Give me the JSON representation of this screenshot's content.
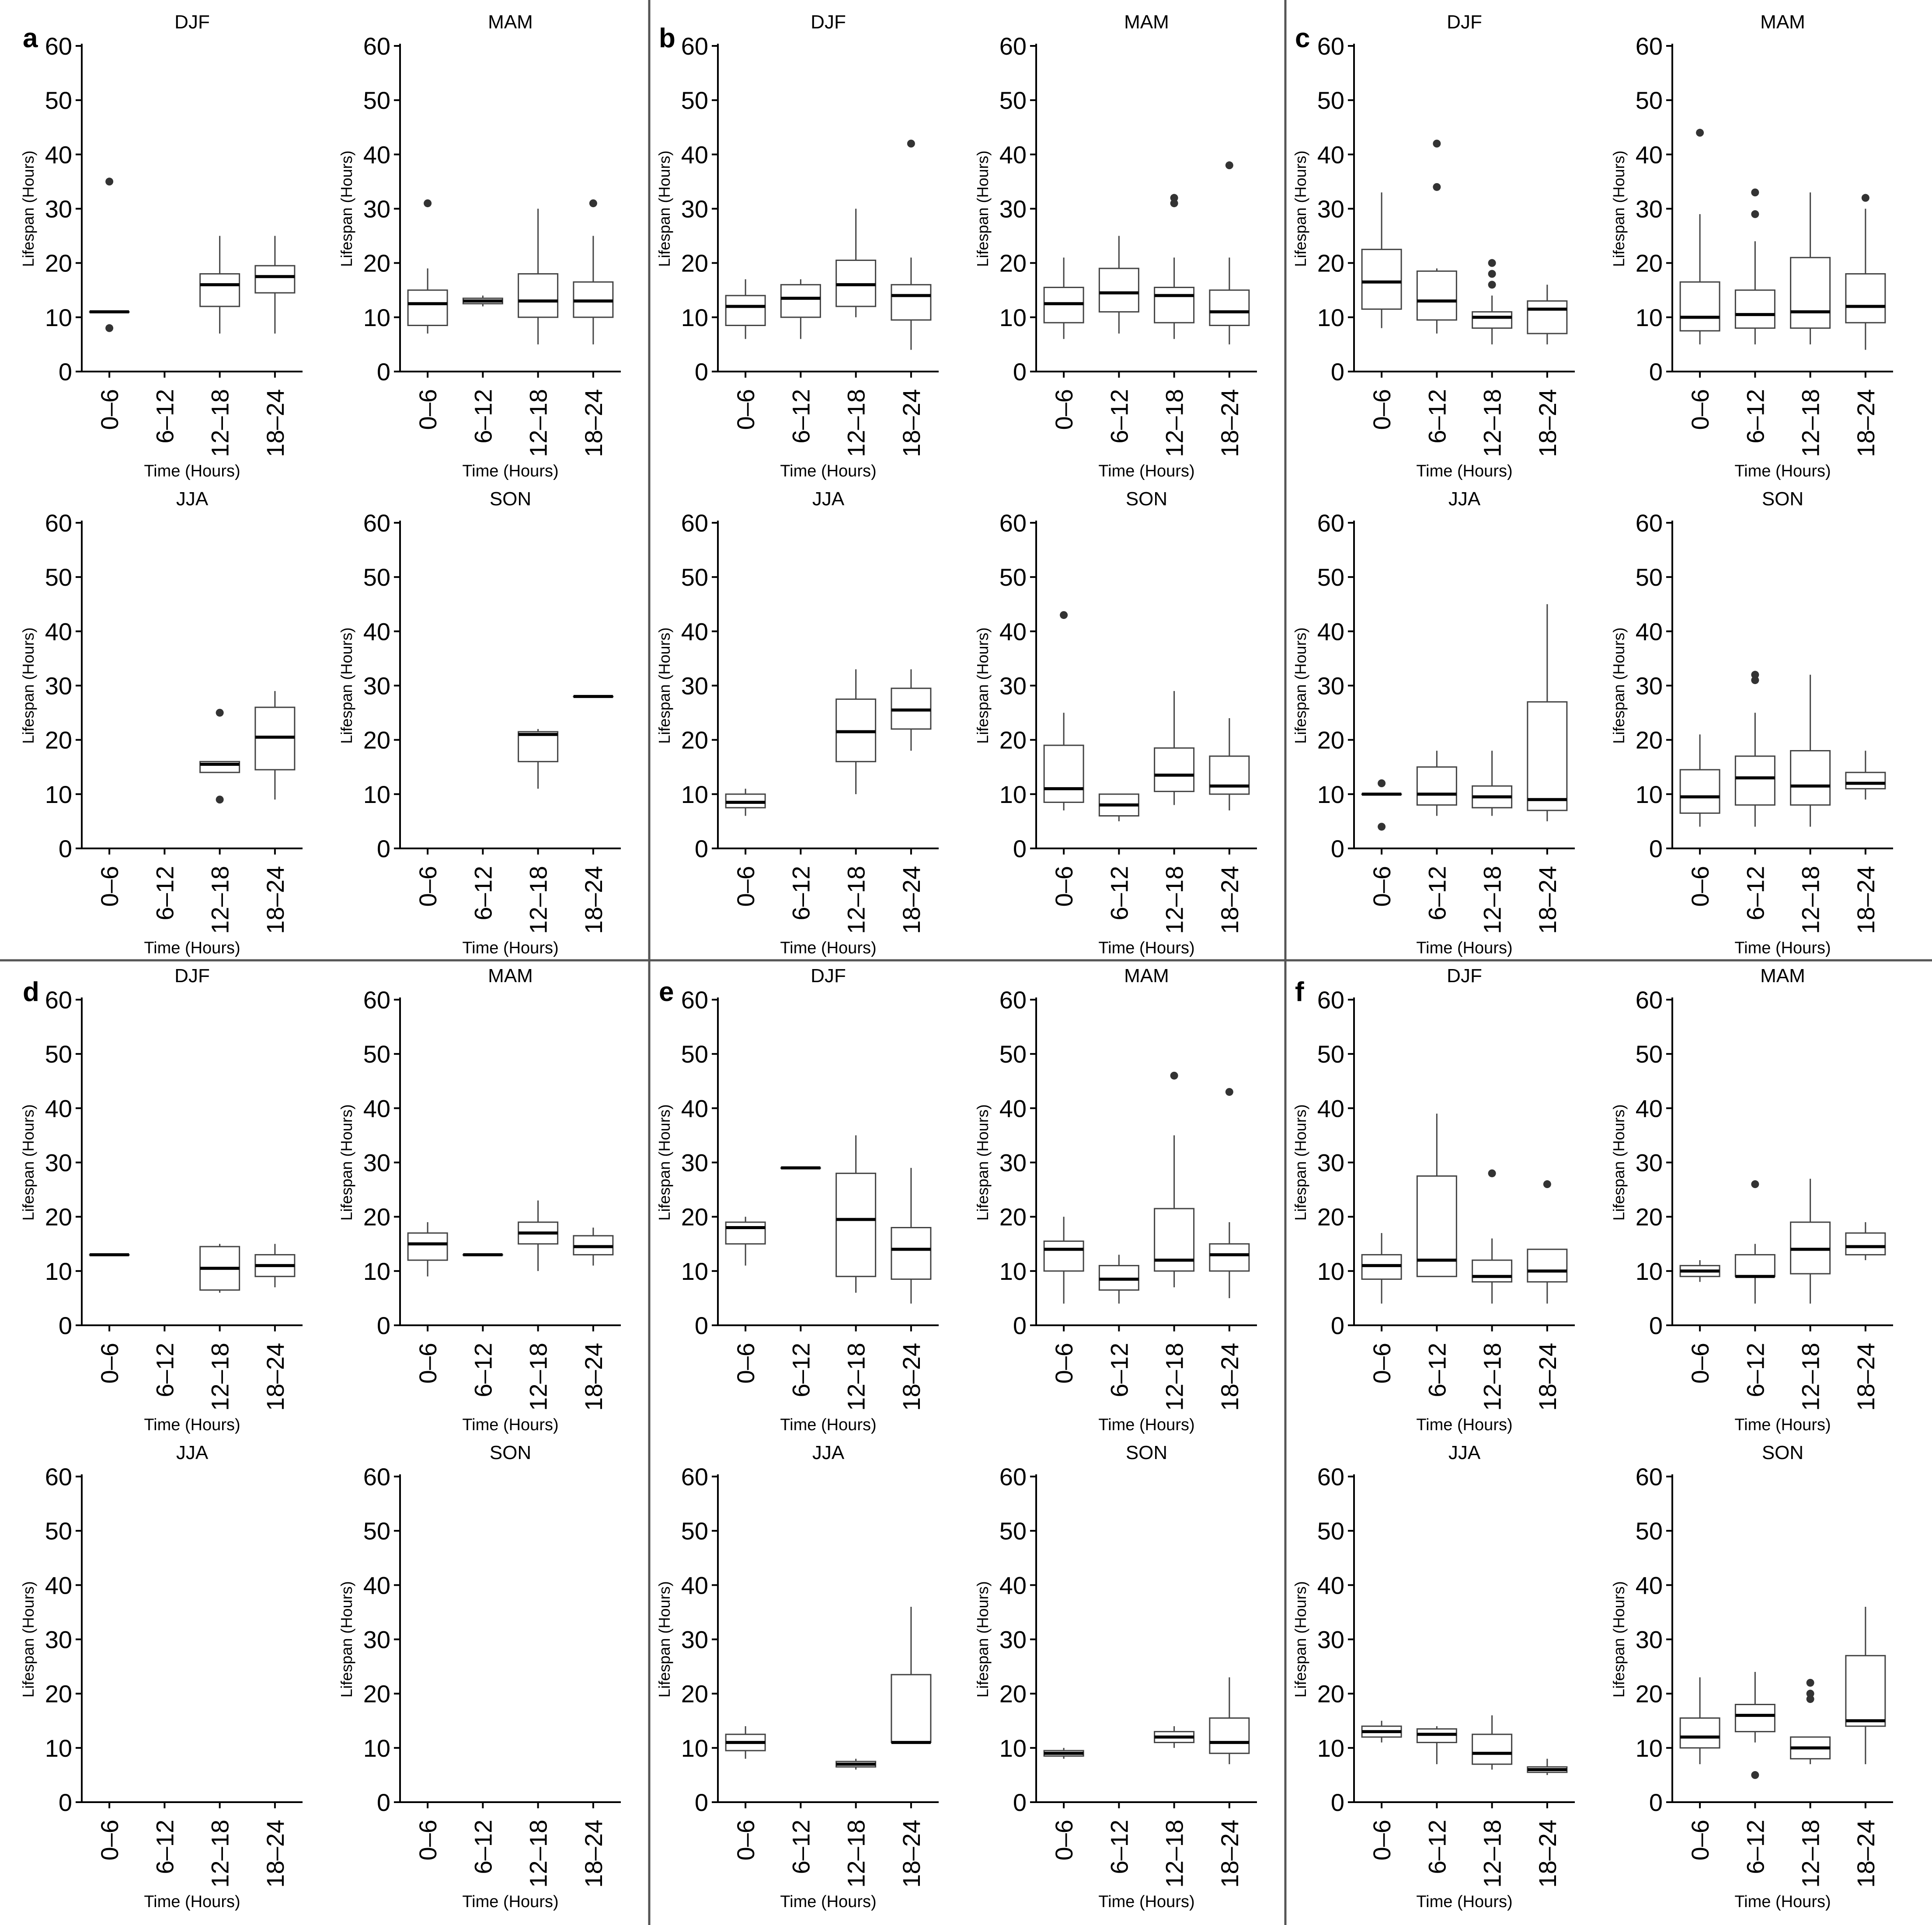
{
  "figure": {
    "colors": {
      "axis": "#000000",
      "box": "#444444",
      "outlier": "#333333",
      "divider": "#555555"
    },
    "shared": {
      "xlabel": "Time (Hours)",
      "ylabel": "Lifespan (Hours)",
      "categories": [
        "0–6",
        "6–12",
        "12–18",
        "18–24"
      ],
      "yticks": [
        0,
        10,
        20,
        30,
        40,
        50,
        60
      ],
      "ylim": [
        0,
        60
      ]
    }
  },
  "chart_data": [
    {
      "label": "a",
      "type": "boxplot",
      "panels": [
        {
          "title": "DJF",
          "boxes": [
            {
              "q1": 11,
              "median": 11,
              "q3": 11,
              "lo": 11,
              "hi": 11,
              "outliers": [
                35,
                8
              ]
            },
            null,
            {
              "q1": 12,
              "median": 16,
              "q3": 18,
              "lo": 7,
              "hi": 25,
              "outliers": []
            },
            {
              "q1": 14.5,
              "median": 17.5,
              "q3": 19.5,
              "lo": 7,
              "hi": 25,
              "outliers": []
            }
          ]
        },
        {
          "title": "MAM",
          "boxes": [
            {
              "q1": 8.5,
              "median": 12.5,
              "q3": 15,
              "lo": 7,
              "hi": 19,
              "outliers": [
                31
              ]
            },
            {
              "q1": 12.5,
              "median": 13,
              "q3": 13.5,
              "lo": 12,
              "hi": 14,
              "outliers": []
            },
            {
              "q1": 10,
              "median": 13,
              "q3": 18,
              "lo": 5,
              "hi": 30,
              "outliers": []
            },
            {
              "q1": 10,
              "median": 13,
              "q3": 16.5,
              "lo": 5,
              "hi": 25,
              "outliers": [
                31
              ]
            }
          ]
        },
        {
          "title": "JJA",
          "boxes": [
            null,
            null,
            {
              "q1": 14,
              "median": 15.5,
              "q3": 16,
              "lo": 14,
              "hi": 16,
              "outliers": [
                25,
                9
              ]
            },
            {
              "q1": 14.5,
              "median": 20.5,
              "q3": 26,
              "lo": 9,
              "hi": 29,
              "outliers": []
            }
          ]
        },
        {
          "title": "SON",
          "boxes": [
            null,
            null,
            {
              "q1": 16,
              "median": 21,
              "q3": 21.5,
              "lo": 11,
              "hi": 22,
              "outliers": []
            },
            {
              "q1": 28,
              "median": 28,
              "q3": 28,
              "lo": 28,
              "hi": 28,
              "outliers": []
            }
          ]
        }
      ]
    },
    {
      "label": "b",
      "type": "boxplot",
      "panels": [
        {
          "title": "DJF",
          "boxes": [
            {
              "q1": 8.5,
              "median": 12,
              "q3": 14,
              "lo": 6,
              "hi": 17,
              "outliers": []
            },
            {
              "q1": 10,
              "median": 13.5,
              "q3": 16,
              "lo": 6,
              "hi": 17,
              "outliers": []
            },
            {
              "q1": 12,
              "median": 16,
              "q3": 20.5,
              "lo": 10,
              "hi": 30,
              "outliers": []
            },
            {
              "q1": 9.5,
              "median": 14,
              "q3": 16,
              "lo": 4,
              "hi": 21,
              "outliers": [
                42
              ]
            }
          ]
        },
        {
          "title": "MAM",
          "boxes": [
            {
              "q1": 9,
              "median": 12.5,
              "q3": 15.5,
              "lo": 6,
              "hi": 21,
              "outliers": []
            },
            {
              "q1": 11,
              "median": 14.5,
              "q3": 19,
              "lo": 7,
              "hi": 25,
              "outliers": []
            },
            {
              "q1": 9,
              "median": 14,
              "q3": 15.5,
              "lo": 6,
              "hi": 21,
              "outliers": [
                31,
                32
              ]
            },
            {
              "q1": 8.5,
              "median": 11,
              "q3": 15,
              "lo": 5,
              "hi": 21,
              "outliers": [
                38
              ]
            }
          ]
        },
        {
          "title": "JJA",
          "boxes": [
            {
              "q1": 7.5,
              "median": 8.5,
              "q3": 10,
              "lo": 6,
              "hi": 11,
              "outliers": []
            },
            null,
            {
              "q1": 16,
              "median": 21.5,
              "q3": 27.5,
              "lo": 10,
              "hi": 33,
              "outliers": []
            },
            {
              "q1": 22,
              "median": 25.5,
              "q3": 29.5,
              "lo": 18,
              "hi": 33,
              "outliers": []
            }
          ]
        },
        {
          "title": "SON",
          "boxes": [
            {
              "q1": 8.5,
              "median": 11,
              "q3": 19,
              "lo": 7,
              "hi": 25,
              "outliers": [
                43
              ]
            },
            {
              "q1": 6,
              "median": 8,
              "q3": 10,
              "lo": 5,
              "hi": 10,
              "outliers": []
            },
            {
              "q1": 10.5,
              "median": 13.5,
              "q3": 18.5,
              "lo": 8,
              "hi": 29,
              "outliers": []
            },
            {
              "q1": 10,
              "median": 11.5,
              "q3": 17,
              "lo": 7,
              "hi": 24,
              "outliers": []
            }
          ]
        }
      ]
    },
    {
      "label": "c",
      "type": "boxplot",
      "panels": [
        {
          "title": "DJF",
          "boxes": [
            {
              "q1": 11.5,
              "median": 16.5,
              "q3": 22.5,
              "lo": 8,
              "hi": 33,
              "outliers": []
            },
            {
              "q1": 9.5,
              "median": 13,
              "q3": 18.5,
              "lo": 7,
              "hi": 19,
              "outliers": [
                34,
                42
              ]
            },
            {
              "q1": 8,
              "median": 10,
              "q3": 11,
              "lo": 5,
              "hi": 14,
              "outliers": [
                16,
                18,
                20
              ]
            },
            {
              "q1": 7,
              "median": 11.5,
              "q3": 13,
              "lo": 5,
              "hi": 16,
              "outliers": []
            }
          ]
        },
        {
          "title": "MAM",
          "boxes": [
            {
              "q1": 7.5,
              "median": 10,
              "q3": 16.5,
              "lo": 5,
              "hi": 29,
              "outliers": [
                44
              ]
            },
            {
              "q1": 8,
              "median": 10.5,
              "q3": 15,
              "lo": 5,
              "hi": 24,
              "outliers": [
                29,
                33
              ]
            },
            {
              "q1": 8,
              "median": 11,
              "q3": 21,
              "lo": 5,
              "hi": 33,
              "outliers": []
            },
            {
              "q1": 9,
              "median": 12,
              "q3": 18,
              "lo": 4,
              "hi": 30,
              "outliers": [
                32
              ]
            }
          ]
        },
        {
          "title": "JJA",
          "boxes": [
            {
              "q1": 10,
              "median": 10,
              "q3": 10,
              "lo": 10,
              "hi": 10,
              "outliers": [
                12,
                4
              ]
            },
            {
              "q1": 8,
              "median": 10,
              "q3": 15,
              "lo": 6,
              "hi": 18,
              "outliers": []
            },
            {
              "q1": 7.5,
              "median": 9.5,
              "q3": 11.5,
              "lo": 6,
              "hi": 18,
              "outliers": []
            },
            {
              "q1": 7,
              "median": 9,
              "q3": 27,
              "lo": 5,
              "hi": 45,
              "outliers": []
            }
          ]
        },
        {
          "title": "SON",
          "boxes": [
            {
              "q1": 6.5,
              "median": 9.5,
              "q3": 14.5,
              "lo": 4,
              "hi": 21,
              "outliers": []
            },
            {
              "q1": 8,
              "median": 13,
              "q3": 17,
              "lo": 4,
              "hi": 25,
              "outliers": [
                31,
                32
              ]
            },
            {
              "q1": 8,
              "median": 11.5,
              "q3": 18,
              "lo": 4,
              "hi": 32,
              "outliers": []
            },
            {
              "q1": 11,
              "median": 12,
              "q3": 14,
              "lo": 9,
              "hi": 18,
              "outliers": []
            }
          ]
        }
      ]
    },
    {
      "label": "d",
      "type": "boxplot",
      "panels": [
        {
          "title": "DJF",
          "boxes": [
            {
              "q1": 13,
              "median": 13,
              "q3": 13,
              "lo": 13,
              "hi": 13,
              "outliers": []
            },
            null,
            {
              "q1": 6.5,
              "median": 10.5,
              "q3": 14.5,
              "lo": 6,
              "hi": 15,
              "outliers": []
            },
            {
              "q1": 9,
              "median": 11,
              "q3": 13,
              "lo": 7,
              "hi": 15,
              "outliers": []
            }
          ]
        },
        {
          "title": "MAM",
          "boxes": [
            {
              "q1": 12,
              "median": 15,
              "q3": 17,
              "lo": 9,
              "hi": 19,
              "outliers": []
            },
            {
              "q1": 13,
              "median": 13,
              "q3": 13,
              "lo": 13,
              "hi": 13,
              "outliers": []
            },
            {
              "q1": 15,
              "median": 17,
              "q3": 19,
              "lo": 10,
              "hi": 23,
              "outliers": []
            },
            {
              "q1": 13,
              "median": 14.5,
              "q3": 16.5,
              "lo": 11,
              "hi": 18,
              "outliers": []
            }
          ]
        },
        {
          "title": "JJA",
          "boxes": [
            null,
            null,
            null,
            null
          ]
        },
        {
          "title": "SON",
          "boxes": [
            null,
            null,
            null,
            null
          ]
        }
      ]
    },
    {
      "label": "e",
      "type": "boxplot",
      "panels": [
        {
          "title": "DJF",
          "boxes": [
            {
              "q1": 15,
              "median": 18,
              "q3": 19,
              "lo": 11,
              "hi": 20,
              "outliers": []
            },
            {
              "q1": 29,
              "median": 29,
              "q3": 29,
              "lo": 29,
              "hi": 29,
              "outliers": []
            },
            {
              "q1": 9,
              "median": 19.5,
              "q3": 28,
              "lo": 6,
              "hi": 35,
              "outliers": []
            },
            {
              "q1": 8.5,
              "median": 14,
              "q3": 18,
              "lo": 4,
              "hi": 29,
              "outliers": []
            }
          ]
        },
        {
          "title": "MAM",
          "boxes": [
            {
              "q1": 10,
              "median": 14,
              "q3": 15.5,
              "lo": 4,
              "hi": 20,
              "outliers": []
            },
            {
              "q1": 6.5,
              "median": 8.5,
              "q3": 11,
              "lo": 4,
              "hi": 13,
              "outliers": []
            },
            {
              "q1": 10,
              "median": 12,
              "q3": 21.5,
              "lo": 7,
              "hi": 35,
              "outliers": [
                46
              ]
            },
            {
              "q1": 10,
              "median": 13,
              "q3": 15,
              "lo": 5,
              "hi": 19,
              "outliers": [
                43
              ]
            }
          ]
        },
        {
          "title": "JJA",
          "boxes": [
            {
              "q1": 9.5,
              "median": 11,
              "q3": 12.5,
              "lo": 8,
              "hi": 14,
              "outliers": []
            },
            null,
            {
              "q1": 6.5,
              "median": 7,
              "q3": 7.5,
              "lo": 6,
              "hi": 8,
              "outliers": []
            },
            {
              "q1": 11,
              "median": 11,
              "q3": 23.5,
              "lo": 11,
              "hi": 36,
              "outliers": []
            }
          ]
        },
        {
          "title": "SON",
          "boxes": [
            {
              "q1": 8.5,
              "median": 9,
              "q3": 9.5,
              "lo": 8,
              "hi": 10,
              "outliers": []
            },
            null,
            {
              "q1": 11,
              "median": 12,
              "q3": 13,
              "lo": 10,
              "hi": 14,
              "outliers": []
            },
            {
              "q1": 9,
              "median": 11,
              "q3": 15.5,
              "lo": 7,
              "hi": 23,
              "outliers": []
            }
          ]
        }
      ]
    },
    {
      "label": "f",
      "type": "boxplot",
      "panels": [
        {
          "title": "DJF",
          "boxes": [
            {
              "q1": 8.5,
              "median": 11,
              "q3": 13,
              "lo": 4,
              "hi": 17,
              "outliers": []
            },
            {
              "q1": 9,
              "median": 12,
              "q3": 27.5,
              "lo": 9,
              "hi": 39,
              "outliers": []
            },
            {
              "q1": 8,
              "median": 9,
              "q3": 12,
              "lo": 4,
              "hi": 16,
              "outliers": [
                28
              ]
            },
            {
              "q1": 8,
              "median": 10,
              "q3": 14,
              "lo": 4,
              "hi": 14,
              "outliers": [
                26
              ]
            }
          ]
        },
        {
          "title": "MAM",
          "boxes": [
            {
              "q1": 9,
              "median": 10,
              "q3": 11,
              "lo": 8,
              "hi": 12,
              "outliers": []
            },
            {
              "q1": 9,
              "median": 9,
              "q3": 13,
              "lo": 4,
              "hi": 15,
              "outliers": [
                26
              ]
            },
            {
              "q1": 9.5,
              "median": 14,
              "q3": 19,
              "lo": 4,
              "hi": 27,
              "outliers": []
            },
            {
              "q1": 13,
              "median": 14.5,
              "q3": 17,
              "lo": 12,
              "hi": 19,
              "outliers": []
            }
          ]
        },
        {
          "title": "JJA",
          "boxes": [
            {
              "q1": 12,
              "median": 13,
              "q3": 14,
              "lo": 11,
              "hi": 15,
              "outliers": []
            },
            {
              "q1": 11,
              "median": 12.5,
              "q3": 13.5,
              "lo": 7,
              "hi": 14,
              "outliers": []
            },
            {
              "q1": 7,
              "median": 9,
              "q3": 12.5,
              "lo": 6,
              "hi": 16,
              "outliers": []
            },
            {
              "q1": 5.5,
              "median": 6,
              "q3": 6.5,
              "lo": 5,
              "hi": 8,
              "outliers": []
            }
          ]
        },
        {
          "title": "SON",
          "boxes": [
            {
              "q1": 10,
              "median": 12,
              "q3": 15.5,
              "lo": 7,
              "hi": 23,
              "outliers": []
            },
            {
              "q1": 13,
              "median": 16,
              "q3": 18,
              "lo": 11,
              "hi": 24,
              "outliers": [
                5
              ]
            },
            {
              "q1": 8,
              "median": 10,
              "q3": 12,
              "lo": 7,
              "hi": 12,
              "outliers": [
                19,
                20,
                22
              ]
            },
            {
              "q1": 14,
              "median": 15,
              "q3": 27,
              "lo": 7,
              "hi": 36,
              "outliers": []
            }
          ]
        }
      ]
    }
  ]
}
